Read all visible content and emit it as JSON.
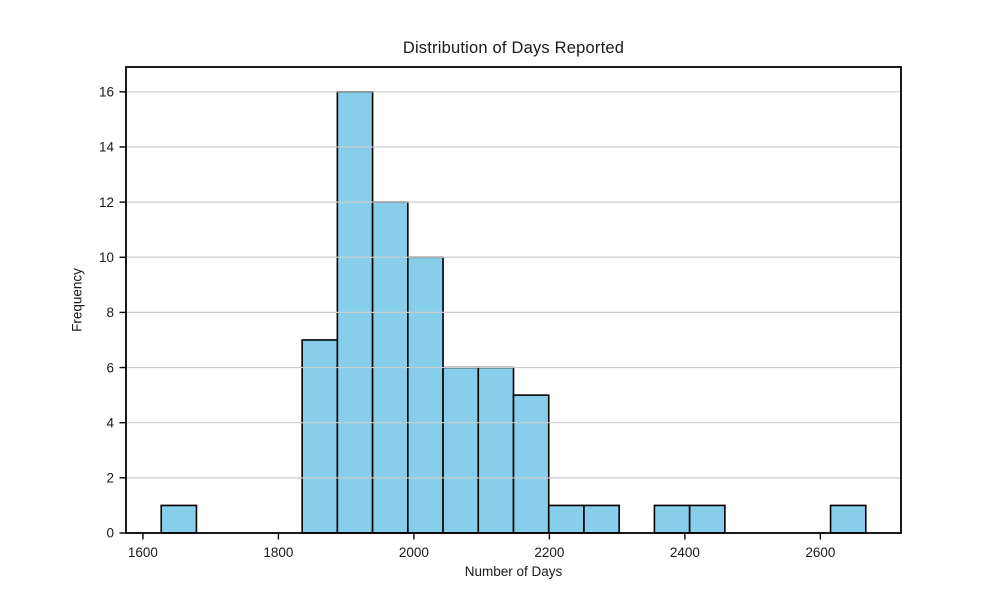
{
  "chart_data": {
    "type": "bar",
    "subtype": "histogram",
    "title": "Distribution of Days Reported",
    "xlabel": "Number of Days",
    "ylabel": "Frequency",
    "bin_edges": [
      1627,
      1679,
      1731,
      1783,
      1835,
      1887,
      1939,
      1991,
      2043,
      2095,
      2147,
      2199,
      2251,
      2303,
      2355,
      2407,
      2459,
      2511,
      2563,
      2615,
      2667
    ],
    "counts": [
      1,
      0,
      0,
      0,
      7,
      16,
      12,
      10,
      6,
      6,
      5,
      1,
      1,
      0,
      1,
      1,
      0,
      0,
      0,
      1
    ],
    "xticks": [
      1600,
      1800,
      2000,
      2200,
      2400,
      2600
    ],
    "yticks": [
      0,
      2,
      4,
      6,
      8,
      10,
      12,
      14,
      16
    ],
    "xlim": [
      1575,
      2719
    ],
    "ylim": [
      0,
      16.9
    ],
    "grid": "horizontal",
    "legend": "none",
    "colors": {
      "bar_fill": "#87CEEB",
      "bar_edge": "#000000",
      "gridline": "#CBCBCB",
      "axis": "#000000",
      "text": "#1A1A1A",
      "background": "#FFFFFF"
    }
  }
}
